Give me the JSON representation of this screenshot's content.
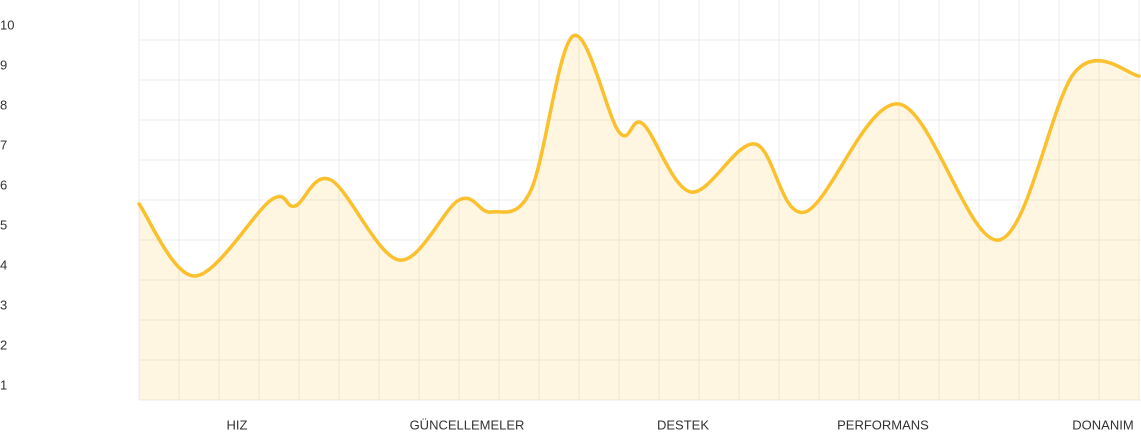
{
  "chart_data": {
    "type": "area",
    "series": [
      {
        "color": "#fbc02d",
        "x": [
          0,
          1.4,
          3.3,
          3.9,
          4.8,
          6.5,
          8.0,
          8.8,
          9.8,
          10.85,
          12.0,
          12.6,
          13.8,
          15.4,
          16.65,
          19.0,
          21.5,
          23.4,
          25
        ],
        "values": [
          5.9,
          4.1,
          6.0,
          5.85,
          6.5,
          4.5,
          6.0,
          5.7,
          6.25,
          10.1,
          7.7,
          7.9,
          6.2,
          7.4,
          5.7,
          8.4,
          5.0,
          9.2,
          9.1
        ]
      }
    ],
    "xlim": [
      0,
      25
    ],
    "xticks": [
      {
        "value": 2.45,
        "label": "HIZ"
      },
      {
        "value": 8.2,
        "label": "GÜNCELLEMELER"
      },
      {
        "value": 13.6,
        "label": "DESTEK"
      },
      {
        "value": 18.6,
        "label": "PERFORMANS"
      },
      {
        "value": 24.1,
        "label": "DONANIM"
      }
    ],
    "ylim": [
      1,
      10
    ],
    "yticks": [
      1,
      2,
      3,
      4,
      5,
      6,
      7,
      8,
      9,
      10
    ],
    "grid": true
  }
}
